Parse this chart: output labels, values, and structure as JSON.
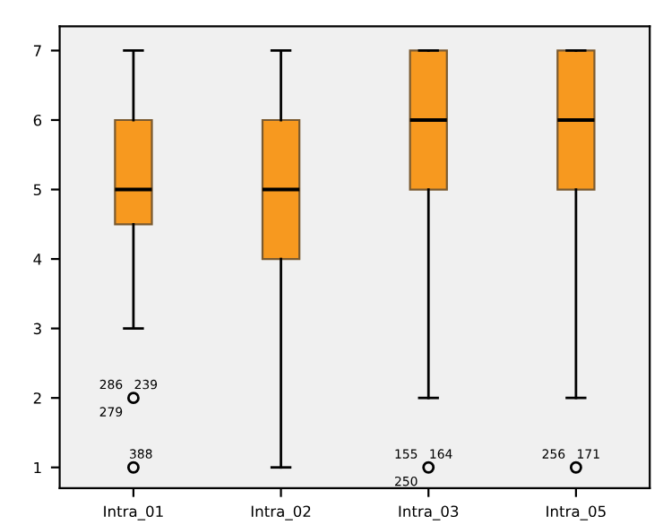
{
  "chart_data": {
    "type": "box",
    "categories": [
      "Intra_01",
      "Intra_02",
      "Intra_03",
      "Intra_05"
    ],
    "color": "#f7991f",
    "boxes": [
      {
        "low": 3,
        "q1": 4.5,
        "median": 5,
        "q3": 6,
        "high": 7,
        "outliers": [
          2,
          1
        ]
      },
      {
        "low": 1,
        "q1": 4,
        "median": 5,
        "q3": 6,
        "high": 7
      },
      {
        "low": 2,
        "q1": 5,
        "median": 6,
        "q3": 7,
        "high": 7,
        "outliers": [
          1
        ]
      },
      {
        "low": 2,
        "q1": 5,
        "median": 6,
        "q3": 7,
        "high": 7,
        "outliers": [
          1
        ]
      }
    ],
    "ylim": [
      0.7,
      7.35
    ],
    "yticks": [
      1,
      2,
      3,
      4,
      5,
      6,
      7
    ],
    "grid": false,
    "annotations": [
      "286",
      "239",
      "279",
      "388",
      "155",
      "164",
      "250",
      "256",
      "171"
    ]
  }
}
